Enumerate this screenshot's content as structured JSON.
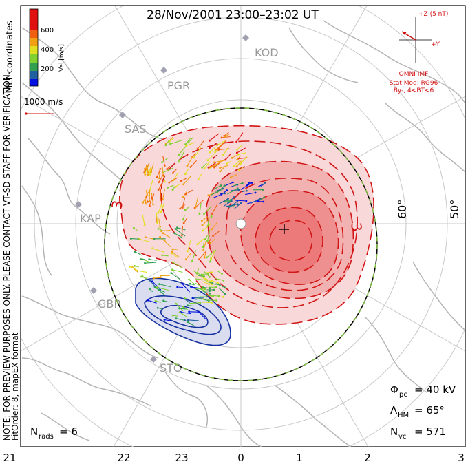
{
  "title": "28/Nov/2001 23:00–23:02 UT",
  "side_note": {
    "line1": "NOTE: FOR PREVIEW PURPOSES ONLY. PLEASE CONTACT VT-SD STAFF FOR VERIFICATION.",
    "line2": "FitOrder: 8, mapEX format",
    "coords": "MLT coordinates"
  },
  "colorbar": {
    "label": "Vel [m/s]",
    "ticks": [
      "200",
      "400",
      "600"
    ],
    "colors": [
      "#0010e0",
      "#2060a0",
      "#30a050",
      "#80d030",
      "#e0e020",
      "#f0a010",
      "#f06010",
      "#e01010"
    ]
  },
  "vector_scale": {
    "label": "1000 m/s"
  },
  "imf": {
    "z_label": "+Z (5 nT)",
    "y_label": "+Y",
    "source": "OMNI IMF",
    "model": "Stat Mod: RG96",
    "condition": "By-, 4<BT<6"
  },
  "radars": [
    "KOD",
    "PGR",
    "SAS",
    "KAP",
    "GBR",
    "STO"
  ],
  "latitudes": [
    "60°",
    "50°"
  ],
  "mlt_axis": [
    "21",
    "22",
    "23",
    "0",
    "1",
    "2",
    "3"
  ],
  "contour_label": "3",
  "stats": {
    "phi_pc": {
      "symbol": "Φ",
      "sub": "pc",
      "value": "= 40 kV"
    },
    "lambda_hm": {
      "symbol": "Λ",
      "sub": "HM",
      "value": "= 65°"
    },
    "n_vc": {
      "symbol": "N",
      "sub": "vc",
      "value": "= 571"
    },
    "n_rads": {
      "symbol": "N",
      "sub": "rads",
      "value": "= 6"
    }
  },
  "colors": {
    "positive_cell": "#f06060",
    "negative_cell": "#6070c0",
    "hm_boundary": "#80c040",
    "land": "#b4b4b4",
    "grid": "#c8c8c8"
  }
}
